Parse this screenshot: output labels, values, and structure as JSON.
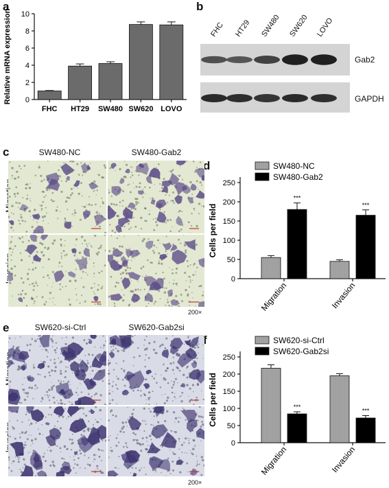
{
  "panels": {
    "a": "a",
    "b": "b",
    "c": "c",
    "d": "d",
    "e": "e",
    "f": "f"
  },
  "panel_b": {
    "lanes": [
      "FHC",
      "HT29",
      "SW480",
      "SW620",
      "LOVO"
    ],
    "rows": [
      "Gab2",
      "GAPDH"
    ],
    "gab2_intensity": [
      0.45,
      0.4,
      0.6,
      0.95,
      0.95
    ],
    "gapdh_intensity": [
      0.85,
      0.8,
      0.75,
      0.85,
      0.8
    ]
  },
  "panel_c": {
    "columns": [
      "SW480-NC",
      "SW480-Gab2"
    ],
    "rows": [
      "Migration",
      "Invasion"
    ],
    "magnification": "200×"
  },
  "panel_e": {
    "columns": [
      "SW620-si-Ctrl",
      "SW620-Gab2si"
    ],
    "rows": [
      "Migration",
      "Invasion"
    ],
    "magnification": "200×"
  },
  "chart_data": [
    {
      "id": "a",
      "type": "bar",
      "categories": [
        "FHC",
        "HT29",
        "SW480",
        "SW620",
        "LOVO"
      ],
      "values": [
        1.0,
        3.9,
        4.2,
        8.75,
        8.7
      ],
      "errors": [
        0.05,
        0.25,
        0.2,
        0.3,
        0.35
      ],
      "ylabel": "Relative mRNA expression",
      "ylim": [
        0,
        10
      ],
      "yticks": [
        0,
        2,
        4,
        6,
        8,
        10
      ],
      "bar_color": "#6b6b6b"
    },
    {
      "id": "d",
      "type": "bar",
      "categories": [
        "Migration",
        "Invasion"
      ],
      "series": [
        {
          "name": "SW480-NC",
          "values": [
            55,
            45
          ],
          "errors": [
            5,
            4
          ],
          "color": "#a6a6a6"
        },
        {
          "name": "SW480-Gab2",
          "values": [
            180,
            165
          ],
          "errors": [
            17,
            14
          ],
          "color": "#000000"
        }
      ],
      "annotations": [
        "***",
        "***"
      ],
      "ylabel": "Cells per field",
      "ylim": [
        0,
        250
      ],
      "yticks": [
        0,
        50,
        100,
        150,
        200,
        250
      ],
      "legend": "top-left"
    },
    {
      "id": "f",
      "type": "bar",
      "categories": [
        "Migration",
        "Invasion"
      ],
      "series": [
        {
          "name": "SW620-si-Ctrl",
          "values": [
            217,
            195
          ],
          "errors": [
            10,
            6
          ],
          "color": "#a6a6a6"
        },
        {
          "name": "SW620-Gab2si",
          "values": [
            84,
            72
          ],
          "errors": [
            6,
            7
          ],
          "color": "#000000"
        }
      ],
      "annotations": [
        "***",
        "***"
      ],
      "ylabel": "Cells per field",
      "ylim": [
        0,
        250
      ],
      "yticks": [
        0,
        50,
        100,
        150,
        200,
        250
      ],
      "legend": "top-left"
    }
  ]
}
